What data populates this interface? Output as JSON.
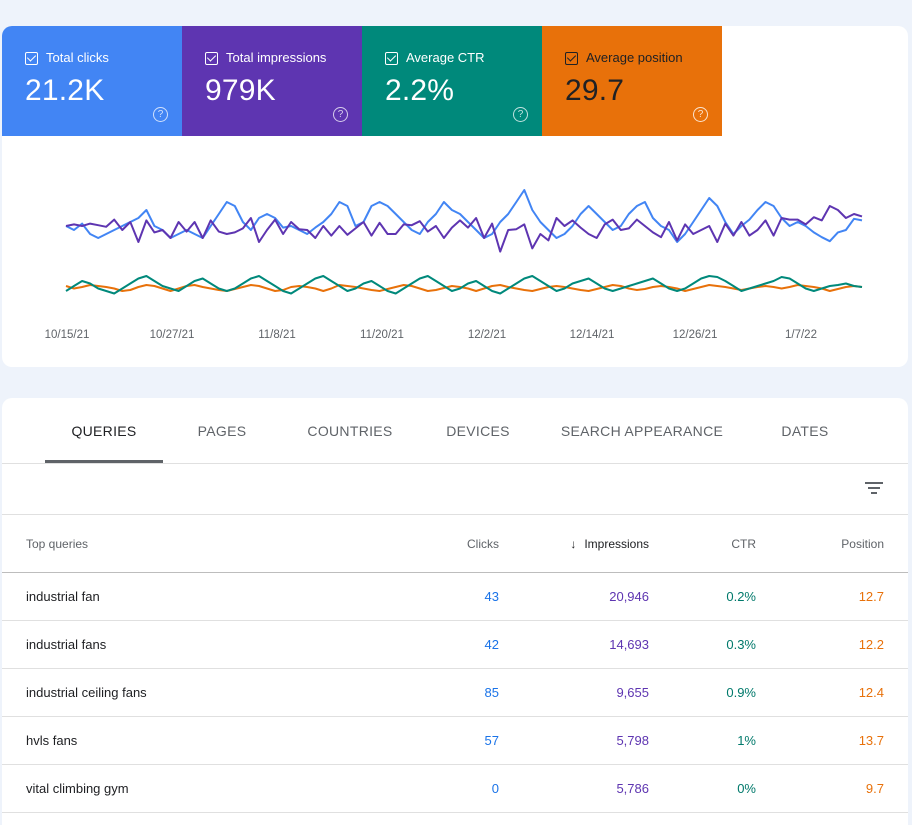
{
  "colors": {
    "clicks": "#4285f4",
    "impressions": "#5e35b1",
    "ctr": "#00897b",
    "position": "#e8710a"
  },
  "metrics": [
    {
      "label": "Total clicks",
      "value": "21.2K",
      "checked": true
    },
    {
      "label": "Total impressions",
      "value": "979K",
      "checked": true
    },
    {
      "label": "Average CTR",
      "value": "2.2%",
      "checked": true
    },
    {
      "label": "Average position",
      "value": "29.7",
      "checked": true
    }
  ],
  "chart_data": {
    "type": "line",
    "x_tick_labels": [
      "10/15/21",
      "10/27/21",
      "11/8/21",
      "11/20/21",
      "12/2/21",
      "12/14/21",
      "12/26/21",
      "1/7/22"
    ],
    "y_axes_visible": false,
    "grid": false,
    "series": [
      {
        "name": "Total impressions",
        "color": "#5e35b1",
        "values": [
          200,
          202,
          200,
          203,
          201,
          199,
          208,
          195,
          205,
          180,
          207,
          192,
          195,
          185,
          205,
          193,
          205,
          185,
          207,
          193,
          190,
          192,
          197,
          210,
          180,
          195,
          208,
          190,
          205,
          196,
          195,
          185,
          200,
          188,
          200,
          189,
          197,
          205,
          188,
          204,
          190,
          190,
          202,
          201,
          206,
          193,
          200,
          185,
          198,
          207,
          198,
          210,
          185,
          203,
          168,
          195,
          196,
          202,
          172,
          190,
          182,
          210,
          200,
          207,
          198,
          190,
          185,
          202,
          208,
          195,
          197,
          208,
          200,
          192,
          186,
          205,
          182,
          202,
          190,
          195,
          200,
          180,
          203,
          188,
          205,
          188,
          195,
          207,
          188,
          210,
          208,
          208,
          202,
          211,
          207,
          225,
          220,
          210,
          215,
          212
        ]
      },
      {
        "name": "Total clicks",
        "color": "#4285f4",
        "values": [
          200,
          195,
          203,
          190,
          185,
          190,
          195,
          200,
          205,
          210,
          220,
          200,
          195,
          185,
          190,
          195,
          190,
          185,
          200,
          215,
          230,
          225,
          205,
          195,
          210,
          215,
          210,
          198,
          200,
          195,
          190,
          198,
          205,
          215,
          230,
          225,
          200,
          205,
          225,
          230,
          225,
          215,
          205,
          195,
          190,
          205,
          215,
          230,
          220,
          215,
          205,
          195,
          185,
          190,
          205,
          215,
          230,
          245,
          220,
          205,
          195,
          185,
          190,
          200,
          215,
          225,
          215,
          205,
          195,
          200,
          215,
          225,
          230,
          210,
          200,
          195,
          180,
          190,
          205,
          220,
          235,
          225,
          205,
          190,
          200,
          208,
          220,
          230,
          225,
          210,
          200,
          205,
          200,
          192,
          186,
          181,
          192,
          195,
          209,
          207
        ]
      },
      {
        "name": "Average CTR",
        "color": "#00897b",
        "values": [
          30,
          40,
          50,
          45,
          35,
          30,
          25,
          35,
          45,
          55,
          60,
          50,
          40,
          35,
          30,
          40,
          50,
          55,
          45,
          35,
          30,
          35,
          45,
          55,
          60,
          50,
          40,
          30,
          25,
          35,
          45,
          55,
          60,
          50,
          40,
          30,
          35,
          45,
          50,
          40,
          30,
          25,
          35,
          45,
          55,
          60,
          50,
          40,
          30,
          35,
          45,
          50,
          40,
          30,
          25,
          35,
          45,
          55,
          60,
          50,
          40,
          30,
          35,
          45,
          50,
          55,
          45,
          35,
          30,
          35,
          40,
          45,
          50,
          55,
          45,
          35,
          30,
          35,
          45,
          55,
          60,
          58,
          50,
          40,
          30,
          35,
          40,
          45,
          50,
          58,
          55,
          45,
          35,
          30,
          35,
          40,
          42,
          45,
          40,
          38
        ]
      },
      {
        "name": "Average position",
        "color": "#e8710a",
        "values": [
          40,
          35,
          38,
          42,
          40,
          38,
          35,
          30,
          32,
          38,
          42,
          40,
          35,
          30,
          35,
          40,
          42,
          38,
          35,
          32,
          30,
          34,
          38,
          42,
          40,
          35,
          30,
          32,
          38,
          40,
          38,
          35,
          30,
          35,
          42,
          40,
          38,
          35,
          32,
          30,
          34,
          38,
          42,
          40,
          35,
          30,
          32,
          36,
          40,
          38,
          35,
          30,
          35,
          40,
          42,
          38,
          35,
          32,
          30,
          34,
          38,
          40,
          38,
          35,
          32,
          30,
          34,
          38,
          42,
          40,
          35,
          32,
          34,
          38,
          40,
          38,
          35,
          30,
          34,
          38,
          42,
          40,
          38,
          35,
          32,
          35,
          38,
          40,
          38,
          35,
          38,
          42,
          40,
          38,
          35,
          30,
          34,
          38,
          40,
          38
        ]
      }
    ]
  },
  "tabs": [
    "QUERIES",
    "PAGES",
    "COUNTRIES",
    "DEVICES",
    "SEARCH APPEARANCE",
    "DATES"
  ],
  "active_tab": "QUERIES",
  "table": {
    "headers": {
      "query": "Top queries",
      "clicks": "Clicks",
      "impressions": "Impressions",
      "ctr": "CTR",
      "position": "Position"
    },
    "sort": {
      "column": "impressions",
      "direction": "descending"
    },
    "rows": [
      {
        "query": "industrial fan",
        "clicks": "43",
        "impressions": "20,946",
        "ctr": "0.2%",
        "position": "12.7"
      },
      {
        "query": "industrial fans",
        "clicks": "42",
        "impressions": "14,693",
        "ctr": "0.3%",
        "position": "12.2"
      },
      {
        "query": "industrial ceiling fans",
        "clicks": "85",
        "impressions": "9,655",
        "ctr": "0.9%",
        "position": "12.4"
      },
      {
        "query": "hvls fans",
        "clicks": "57",
        "impressions": "5,798",
        "ctr": "1%",
        "position": "13.7"
      },
      {
        "query": "vital climbing gym",
        "clicks": "0",
        "impressions": "5,786",
        "ctr": "0%",
        "position": "9.7"
      }
    ]
  }
}
